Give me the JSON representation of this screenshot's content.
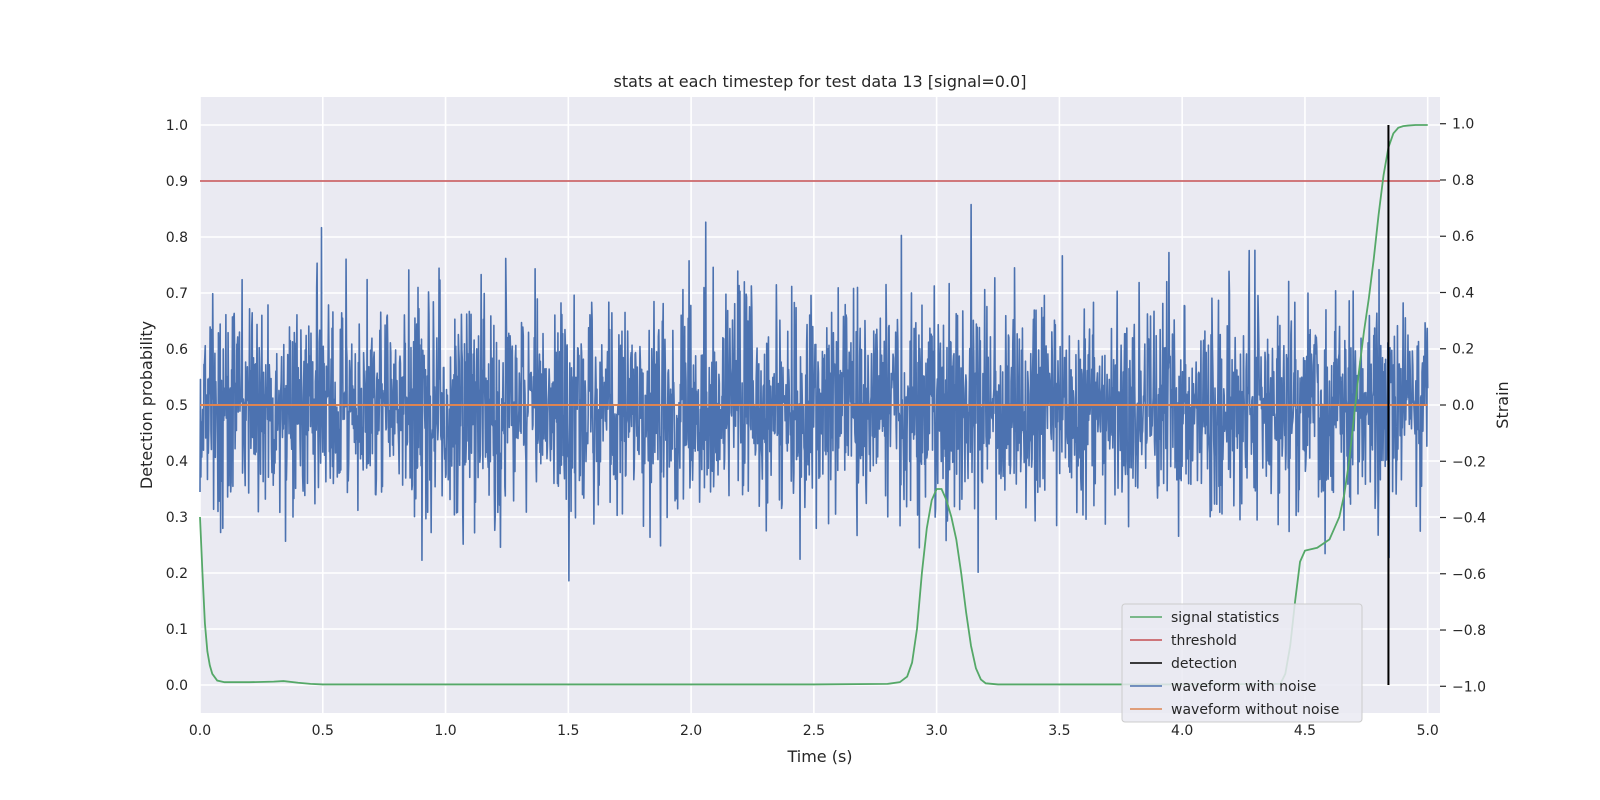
{
  "chart_data": {
    "type": "line",
    "title": "stats at each timestep for test data 13 [signal=0.0]",
    "xlabel": "Time (s)",
    "ylabel": "Detection probability",
    "ylabel_right": "Strain",
    "xlim": [
      0.0,
      5.05
    ],
    "ylim": [
      -0.05,
      1.05
    ],
    "ylim_right": [
      -1.095,
      1.095
    ],
    "x_ticks": [
      0.0,
      0.5,
      1.0,
      1.5,
      2.0,
      2.5,
      3.0,
      3.5,
      4.0,
      4.5,
      5.0
    ],
    "x_tick_labels": [
      "0.0",
      "0.5",
      "1.0",
      "1.5",
      "2.0",
      "2.5",
      "3.0",
      "3.5",
      "4.0",
      "4.5",
      "5.0"
    ],
    "y_ticks": [
      0.0,
      0.1,
      0.2,
      0.3,
      0.4,
      0.5,
      0.6,
      0.7,
      0.8,
      0.9,
      1.0
    ],
    "y_tick_labels": [
      "0.0",
      "0.1",
      "0.2",
      "0.3",
      "0.4",
      "0.5",
      "0.6",
      "0.7",
      "0.8",
      "0.9",
      "1.0"
    ],
    "y_right_ticks": [
      -1.0,
      -0.8,
      -0.6,
      -0.4,
      -0.2,
      0.0,
      0.2,
      0.4,
      0.6,
      0.8,
      1.0
    ],
    "y_right_tick_labels": [
      "−1.0",
      "−0.8",
      "−0.6",
      "−0.4",
      "−0.2",
      "0.0",
      "0.2",
      "0.4",
      "0.6",
      "0.8",
      "1.0"
    ],
    "grid": true,
    "legend_position": "bottom-right",
    "colors": {
      "background": "#eaeaf2",
      "grid": "#ffffff",
      "signal_statistics": "#55a868",
      "threshold": "#c44e52",
      "detection": "#000000",
      "waveform_with_noise": "#4c72b0",
      "waveform_without_noise": "#dd8452"
    },
    "series": [
      {
        "name": "signal statistics",
        "axis": "left",
        "x": [
          0.0,
          0.01,
          0.02,
          0.03,
          0.04,
          0.05,
          0.07,
          0.1,
          0.2,
          0.3,
          0.34,
          0.4,
          0.45,
          0.5,
          1.0,
          2.0,
          2.5,
          2.8,
          2.85,
          2.88,
          2.9,
          2.92,
          2.94,
          2.96,
          2.98,
          3.0,
          3.02,
          3.04,
          3.06,
          3.08,
          3.1,
          3.12,
          3.14,
          3.16,
          3.18,
          3.2,
          3.25,
          3.5,
          4.0,
          4.4,
          4.42,
          4.44,
          4.46,
          4.48,
          4.5,
          4.55,
          4.6,
          4.62,
          4.64,
          4.66,
          4.68,
          4.7,
          4.72,
          4.74,
          4.76,
          4.78,
          4.8,
          4.82,
          4.84,
          4.86,
          4.88,
          4.9,
          4.92,
          4.95,
          5.0
        ],
        "values": [
          0.3,
          0.2,
          0.11,
          0.06,
          0.035,
          0.02,
          0.008,
          0.005,
          0.005,
          0.006,
          0.007,
          0.004,
          0.002,
          0.001,
          0.001,
          0.001,
          0.001,
          0.002,
          0.005,
          0.015,
          0.04,
          0.1,
          0.2,
          0.28,
          0.33,
          0.35,
          0.35,
          0.33,
          0.3,
          0.26,
          0.2,
          0.13,
          0.07,
          0.03,
          0.01,
          0.003,
          0.001,
          0.001,
          0.001,
          0.002,
          0.02,
          0.07,
          0.15,
          0.22,
          0.24,
          0.245,
          0.26,
          0.28,
          0.3,
          0.34,
          0.4,
          0.48,
          0.56,
          0.63,
          0.69,
          0.76,
          0.84,
          0.91,
          0.96,
          0.985,
          0.995,
          0.998,
          0.999,
          1.0,
          1.0
        ]
      },
      {
        "name": "threshold",
        "axis": "left",
        "x": [
          0.0,
          5.05
        ],
        "values": [
          0.9,
          0.9
        ]
      },
      {
        "name": "detection",
        "axis": "left",
        "x": [
          4.84,
          4.84
        ],
        "values": [
          0.0,
          1.0
        ]
      },
      {
        "name": "waveform with noise",
        "axis": "right",
        "generated": true,
        "n_points": 2800,
        "seed": 13,
        "x_range": [
          0.0,
          5.0
        ],
        "amplitude_std": 0.19,
        "value_range": [
          -1.0,
          1.0
        ]
      },
      {
        "name": "waveform without noise",
        "axis": "right",
        "x": [
          0.0,
          5.0
        ],
        "values": [
          0.0,
          0.0
        ]
      }
    ],
    "legend_entries": [
      "signal statistics",
      "threshold",
      "detection",
      "waveform with noise",
      "waveform without noise"
    ]
  }
}
